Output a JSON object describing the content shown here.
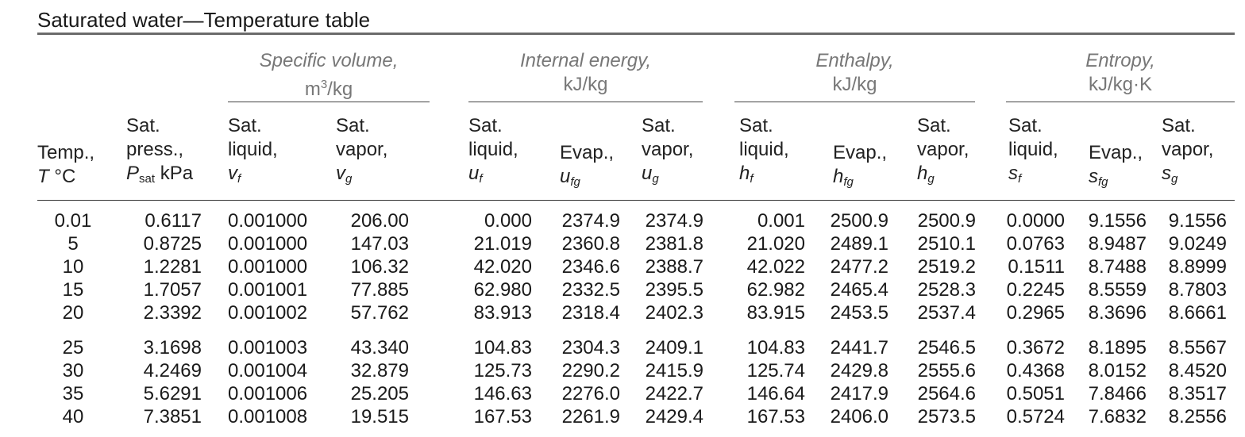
{
  "title": "Saturated water—Temperature table",
  "groups": {
    "specific_volume": {
      "name": "Specific volume,",
      "unit_base": "m",
      "unit_sup": "3",
      "unit_rest": "/kg"
    },
    "internal_energy": {
      "name": "Internal energy,",
      "unit": "kJ/kg"
    },
    "enthalpy": {
      "name": "Enthalpy,",
      "unit": "kJ/kg"
    },
    "entropy": {
      "name": "Entropy,",
      "unit": "kJ/kg·K"
    }
  },
  "headers": {
    "temp": {
      "l1": "Temp.,",
      "sym": "T",
      "unit": " °C"
    },
    "press": {
      "l1": "Sat.",
      "l2": "press.,",
      "sym": "P",
      "sub": "sat",
      "unit": " kPa"
    },
    "vf": {
      "l1": "Sat.",
      "l2": "liquid,",
      "sym": "v",
      "sub": "f"
    },
    "vg": {
      "l1": "Sat.",
      "l2": "vapor,",
      "sym": "v",
      "sub": "g"
    },
    "uf": {
      "l1": "Sat.",
      "l2": "liquid,",
      "sym": "u",
      "sub": "f"
    },
    "ufg": {
      "l2": "Evap.,",
      "sym": "u",
      "sub": "fg"
    },
    "ug": {
      "l1": "Sat.",
      "l2": "vapor,",
      "sym": "u",
      "sub": "g"
    },
    "hf": {
      "l1": "Sat.",
      "l2": "liquid,",
      "sym": "h",
      "sub": "f"
    },
    "hfg": {
      "l2": "Evap.,",
      "sym": "h",
      "sub": "fg"
    },
    "hg": {
      "l1": "Sat.",
      "l2": "vapor,",
      "sym": "h",
      "sub": "g"
    },
    "sf": {
      "l1": "Sat.",
      "l2": "liquid,",
      "sym": "s",
      "sub": "f"
    },
    "sfg": {
      "l2": "Evap.,",
      "sym": "s",
      "sub": "fg"
    },
    "sg": {
      "l1": "Sat.",
      "l2": "vapor,",
      "sym": "s",
      "sub": "g"
    }
  },
  "rows": [
    [
      "0.01",
      "0.6117",
      "0.001000",
      "206.00",
      "0.000",
      "2374.9",
      "2374.9",
      "0.001",
      "2500.9",
      "2500.9",
      "0.0000",
      "9.1556",
      "9.1556"
    ],
    [
      "5",
      "0.8725",
      "0.001000",
      "147.03",
      "21.019",
      "2360.8",
      "2381.8",
      "21.020",
      "2489.1",
      "2510.1",
      "0.0763",
      "8.9487",
      "9.0249"
    ],
    [
      "10",
      "1.2281",
      "0.001000",
      "106.32",
      "42.020",
      "2346.6",
      "2388.7",
      "42.022",
      "2477.2",
      "2519.2",
      "0.1511",
      "8.7488",
      "8.8999"
    ],
    [
      "15",
      "1.7057",
      "0.001001",
      "77.885",
      "62.980",
      "2332.5",
      "2395.5",
      "62.982",
      "2465.4",
      "2528.3",
      "0.2245",
      "8.5559",
      "8.7803"
    ],
    [
      "20",
      "2.3392",
      "0.001002",
      "57.762",
      "83.913",
      "2318.4",
      "2402.3",
      "83.915",
      "2453.5",
      "2537.4",
      "0.2965",
      "8.3696",
      "8.6661"
    ],
    [
      "25",
      "3.1698",
      "0.001003",
      "43.340",
      "104.83",
      "2304.3",
      "2409.1",
      "104.83",
      "2441.7",
      "2546.5",
      "0.3672",
      "8.1895",
      "8.5567"
    ],
    [
      "30",
      "4.2469",
      "0.001004",
      "32.879",
      "125.73",
      "2290.2",
      "2415.9",
      "125.74",
      "2429.8",
      "2555.6",
      "0.4368",
      "8.0152",
      "8.4520"
    ],
    [
      "35",
      "5.6291",
      "0.001006",
      "25.205",
      "146.63",
      "2276.0",
      "2422.7",
      "146.64",
      "2417.9",
      "2564.6",
      "0.5051",
      "7.8466",
      "8.3517"
    ],
    [
      "40",
      "7.3851",
      "0.001008",
      "19.515",
      "167.53",
      "2261.9",
      "2429.4",
      "167.53",
      "2406.0",
      "2573.5",
      "0.5724",
      "7.6832",
      "8.2556"
    ]
  ]
}
